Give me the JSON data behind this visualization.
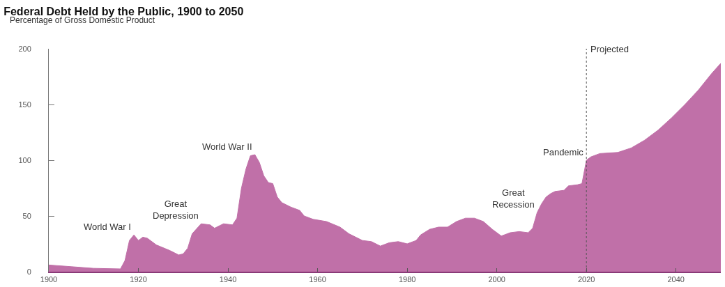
{
  "chart_data": {
    "type": "area",
    "title": "Federal Debt Held by the Public, 1900 to 2050",
    "subtitle": "Percentage of Gross Domestic Product",
    "x": [
      1900,
      1905,
      1910,
      1916,
      1917,
      1918,
      1919,
      1920,
      1921,
      1922,
      1924,
      1927,
      1929,
      1930,
      1931,
      1932,
      1934,
      1936,
      1937,
      1939,
      1941,
      1942,
      1943,
      1944,
      1945,
      1946,
      1947,
      1948,
      1949,
      1950,
      1951,
      1952,
      1954,
      1956,
      1957,
      1959,
      1962,
      1965,
      1967,
      1970,
      1972,
      1974,
      1976,
      1978,
      1980,
      1982,
      1983,
      1985,
      1987,
      1989,
      1991,
      1993,
      1995,
      1997,
      1999,
      2001,
      2003,
      2005,
      2007,
      2008,
      2009,
      2010,
      2011,
      2012,
      2013,
      2015,
      2016,
      2018,
      2019,
      2020,
      2021,
      2023,
      2027,
      2030,
      2033,
      2036,
      2039,
      2042,
      2045,
      2048,
      2050
    ],
    "values": [
      6,
      4.5,
      3,
      2.5,
      10,
      28,
      33,
      28,
      31,
      30,
      24,
      19,
      15,
      16,
      21,
      34,
      43,
      42,
      39,
      43,
      42,
      48,
      75,
      92,
      104,
      105,
      98,
      86,
      80,
      79,
      67,
      62,
      58,
      55,
      50,
      47,
      45,
      40,
      34,
      28,
      27,
      23,
      26,
      27,
      25,
      28,
      33,
      38,
      40,
      40,
      45,
      48,
      48,
      45,
      38,
      32,
      35,
      36,
      35,
      39,
      53,
      61,
      67,
      70,
      72,
      73,
      77,
      78,
      79,
      100,
      103,
      106,
      107,
      111,
      118,
      127,
      138,
      150,
      163,
      178,
      187
    ],
    "color": "#c070a8",
    "xlim": [
      1900,
      2050
    ],
    "xticks": [
      1900,
      1920,
      1940,
      1960,
      1980,
      2000,
      2020,
      2040
    ],
    "ylim": [
      0,
      200
    ],
    "yticks": [
      0,
      50,
      100,
      150,
      200
    ],
    "grid": false,
    "ref_lines": [
      {
        "axis": "x",
        "value": 2020,
        "label": "Projected",
        "color": "#555555",
        "line_style": "dotted"
      }
    ],
    "annotations": [
      {
        "text": "World War I",
        "x": 1919,
        "y": 33
      },
      {
        "text": "Great\nDepression",
        "x": 1934,
        "y": 43
      },
      {
        "text": "World War II",
        "x": 1946,
        "y": 105
      },
      {
        "text": "Great\nRecession",
        "x": 2009,
        "y": 53
      },
      {
        "text": "Pandemic",
        "x": 2020,
        "y": 100
      }
    ]
  }
}
